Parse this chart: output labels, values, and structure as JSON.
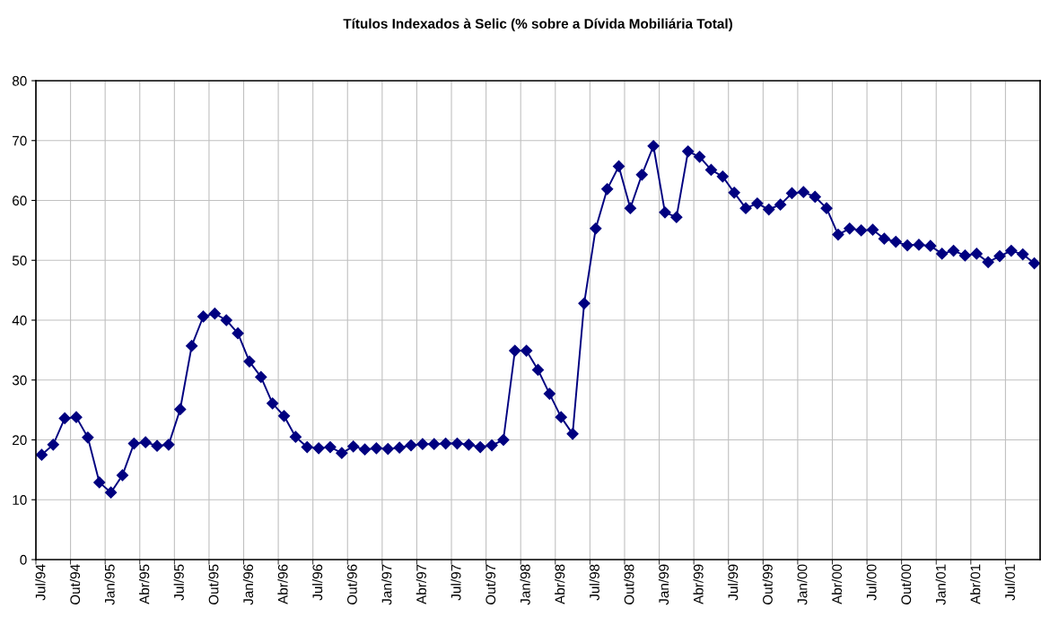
{
  "chart_data": {
    "type": "line",
    "title": "Títulos Indexados à Selic (% sobre a Dívida Mobiliária Total)",
    "categories": [
      "Jul/94",
      null,
      null,
      "Out/94",
      null,
      null,
      "Jan/95",
      null,
      null,
      "Abr/95",
      null,
      null,
      "Jul/95",
      null,
      null,
      "Out/95",
      null,
      null,
      "Jan/96",
      null,
      null,
      "Abr/96",
      null,
      null,
      "Jul/96",
      null,
      null,
      "Out/96",
      null,
      null,
      "Jan/97",
      null,
      null,
      "Abr/97",
      null,
      null,
      "Jul/97",
      null,
      null,
      "Out/97",
      null,
      null,
      "Jan/98",
      null,
      null,
      "Abr/98",
      null,
      null,
      "Jul/98",
      null,
      null,
      "Out/98",
      null,
      null,
      "Jan/99",
      null,
      null,
      "Abr/99",
      null,
      null,
      "Jul/99",
      null,
      null,
      "Out/99",
      null,
      null,
      "Jan/00",
      null,
      null,
      "Abr/00",
      null,
      null,
      "Jul/00",
      null,
      null,
      "Out/00",
      null,
      null,
      "Jan/01",
      null,
      null,
      "Abr/01",
      null,
      null,
      "Jul/01",
      null,
      null
    ],
    "series": [
      {
        "color": "#000080",
        "values": [
          17.5,
          19.2,
          23.6,
          23.8,
          20.4,
          12.9,
          11.2,
          14.1,
          19.4,
          19.6,
          19.0,
          19.2,
          25.1,
          35.7,
          40.6,
          41.1,
          40.0,
          37.8,
          33.1,
          30.5,
          26.1,
          24.0,
          20.5,
          18.8,
          18.6,
          18.8,
          17.8,
          18.9,
          18.4,
          18.6,
          18.5,
          18.7,
          19.1,
          19.3,
          19.3,
          19.4,
          19.4,
          19.2,
          18.8,
          19.1,
          20.0,
          34.9,
          34.9,
          31.7,
          27.7,
          23.8,
          21.0,
          42.8,
          55.3,
          61.9,
          65.7,
          58.7,
          64.3,
          69.1,
          58.0,
          57.2,
          68.2,
          67.3,
          65.1,
          64.0,
          61.3,
          58.7,
          59.5,
          58.5,
          59.3,
          61.2,
          61.4,
          60.6,
          58.7,
          54.3,
          55.3,
          55.0,
          55.1,
          53.6,
          53.1,
          52.5,
          52.6,
          52.4,
          51.1,
          51.6,
          50.8,
          51.1,
          49.7,
          50.7,
          51.6,
          51.0,
          49.5
        ]
      }
    ],
    "ylim": [
      0,
      80
    ],
    "yticks": [
      0,
      10,
      20,
      30,
      40,
      50,
      60,
      70,
      80
    ],
    "grid": true,
    "marker": "diamond",
    "line_style": "solid"
  }
}
